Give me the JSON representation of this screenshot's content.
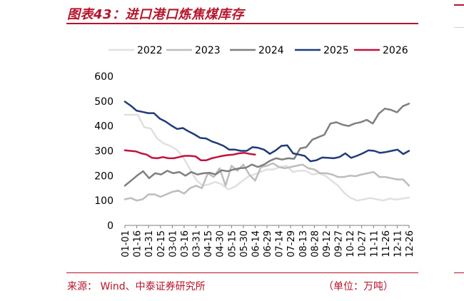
{
  "header": {
    "title": "图表43：进口港口炼焦煤库存"
  },
  "footer": {
    "source": "来源：   Wind、中泰证券研究所",
    "unit": "（单位：万吨）"
  },
  "chart_data": {
    "type": "line",
    "title": "",
    "xlabel": "",
    "ylabel": "",
    "ylim": [
      0,
      600
    ],
    "yticks": [
      0,
      100,
      200,
      300,
      400,
      500,
      600
    ],
    "grid": false,
    "legend": "top",
    "x_ticks": [
      "01-01",
      "01-16",
      "01-31",
      "02-15",
      "03-01",
      "03-16",
      "03-31",
      "04-15",
      "04-30",
      "05-15",
      "05-30",
      "06-14",
      "06-29",
      "07-14",
      "07-29",
      "08-13",
      "08-28",
      "09-12",
      "09-27",
      "10-12",
      "10-27",
      "11-11",
      "11-26",
      "12-11",
      "12-26"
    ],
    "series": [
      {
        "name": "2022",
        "color": "#e0e0e0",
        "values": [
          445,
          445,
          445,
          395,
          390,
          350,
          330,
          320,
          305,
          275,
          230,
          185,
          160,
          165,
          175,
          165,
          145,
          155,
          175,
          195,
          205,
          215,
          225,
          225,
          235,
          240,
          215,
          220,
          220,
          205,
          210,
          200,
          180,
          160,
          130,
          110,
          100,
          105,
          110,
          105,
          100,
          108,
          104,
          108,
          112
        ]
      },
      {
        "name": "2023",
        "color": "#bdbdbd",
        "values": [
          105,
          110,
          100,
          105,
          125,
          125,
          115,
          125,
          135,
          140,
          128,
          150,
          160,
          150,
          210,
          195,
          230,
          160,
          240,
          220,
          245,
          205,
          180,
          235,
          240,
          250,
          235,
          230,
          235,
          240,
          245,
          230,
          225,
          210,
          210,
          205,
          195,
          195,
          200,
          198,
          205,
          210,
          215,
          195,
          195,
          190,
          185,
          185,
          160
        ]
      },
      {
        "name": "2024",
        "color": "#7f7f7f",
        "values": [
          160,
          180,
          200,
          218,
          190,
          210,
          205,
          220,
          210,
          215,
          200,
          215,
          205,
          210,
          212,
          205,
          222,
          218,
          225,
          230,
          232,
          245,
          235,
          245,
          260,
          270,
          265,
          270,
          268,
          310,
          315,
          345,
          355,
          365,
          410,
          415,
          405,
          400,
          410,
          415,
          425,
          410,
          450,
          470,
          465,
          455,
          480,
          490
        ]
      },
      {
        "name": "2025",
        "color": "#1f3b78",
        "values": [
          498,
          482,
          462,
          457,
          452,
          452,
          430,
          418,
          402,
          388,
          392,
          378,
          366,
          352,
          350,
          338,
          330,
          320,
          305,
          305,
          300,
          300,
          315,
          312,
          305,
          288,
          302,
          320,
          322,
          290,
          285,
          280,
          258,
          262,
          273,
          272,
          270,
          275,
          290,
          272,
          280,
          290,
          302,
          300,
          292,
          295,
          300,
          305,
          287,
          300
        ]
      },
      {
        "name": "2026",
        "color": "#c0143c",
        "values": [
          302,
          300,
          298,
          290,
          285,
          272,
          270,
          275,
          270,
          270,
          275,
          280,
          280,
          278,
          262,
          262,
          270,
          275,
          280,
          283,
          285,
          290,
          292,
          288,
          285
        ]
      }
    ]
  }
}
